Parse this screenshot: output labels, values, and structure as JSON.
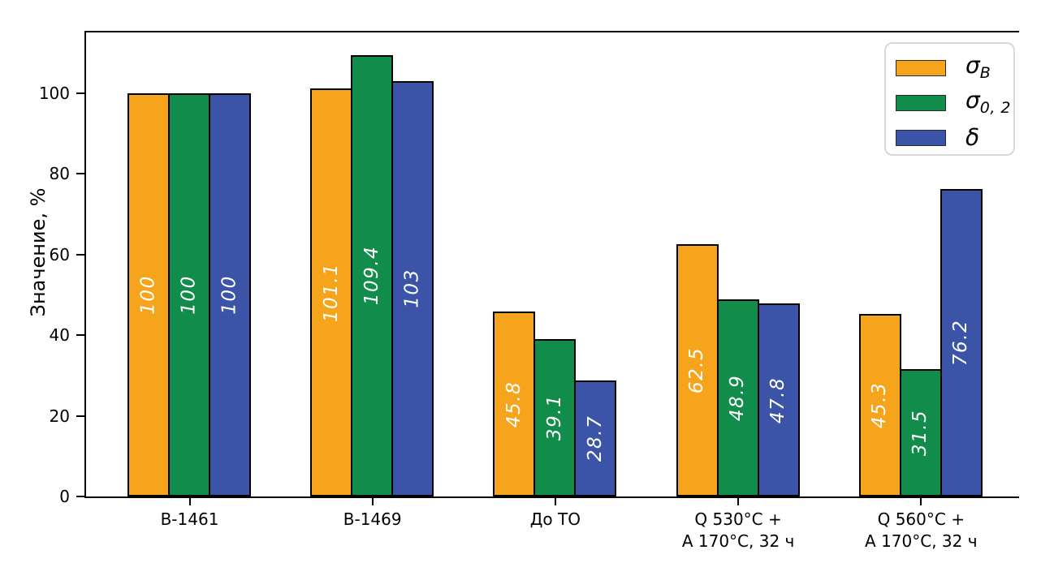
{
  "chart_data": {
    "type": "bar",
    "title": "",
    "xlabel": "",
    "ylabel": "Значение, %",
    "ylim": [
      0,
      115
    ],
    "yticks": [
      0,
      20,
      40,
      60,
      80,
      100
    ],
    "ytick_labels": [
      "0",
      "20",
      "40",
      "60",
      "80",
      "100"
    ],
    "grid": false,
    "legend_position": "upper right",
    "categories": [
      "В-1461",
      "В-1469",
      "До ТО",
      "Q 530°C +\nA 170°C, 32 ч",
      "Q 560°C +\nA 170°C, 32 ч"
    ],
    "series": [
      {
        "name": "σB",
        "legend_base": "σ",
        "legend_sub": "B",
        "color": "#F6A41C",
        "values": [
          100,
          101.1,
          45.8,
          62.5,
          45.3
        ],
        "labels": [
          "100",
          "101.1",
          "45.8",
          "62.5",
          "45.3"
        ]
      },
      {
        "name": "σ0,2",
        "legend_base": "σ",
        "legend_sub": "0, 2",
        "color": "#128C4A",
        "values": [
          100,
          109.4,
          39.1,
          48.9,
          31.5
        ],
        "labels": [
          "100",
          "109.4",
          "39.1",
          "48.9",
          "31.5"
        ]
      },
      {
        "name": "δ",
        "legend_base": "δ",
        "legend_sub": "",
        "color": "#3B54A8",
        "values": [
          100,
          103,
          28.7,
          47.8,
          76.2
        ],
        "labels": [
          "100",
          "103",
          "28.7",
          "47.8",
          "76.2"
        ]
      }
    ],
    "bar_label_color": "#ffffff",
    "bar_label_style": "italic, rotated 90°, centered in bar",
    "edge_color": "#000000"
  }
}
